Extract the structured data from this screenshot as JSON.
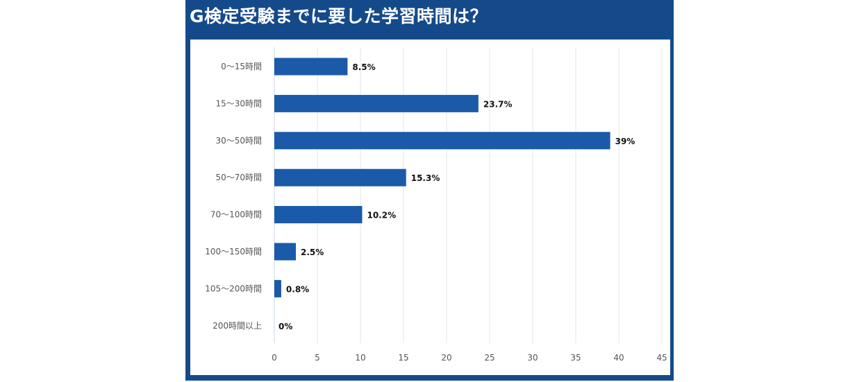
{
  "chart_data": {
    "type": "bar",
    "orientation": "horizontal",
    "title": "G検定受験までに要した学習時間は？",
    "categories": [
      "0〜15時間",
      "15〜30時間",
      "30〜50時間",
      "50〜70時間",
      "70〜100時間",
      "100〜150時間",
      "105〜200時間",
      "200時間以上"
    ],
    "values": [
      8.5,
      23.7,
      39,
      15.3,
      10.2,
      2.5,
      0.8,
      0
    ],
    "data_labels": [
      "8.5%",
      "23.7%",
      "39%",
      "15.3%",
      "10.2%",
      "2.5%",
      "0.8%",
      "0%"
    ],
    "xlim": [
      0,
      45
    ],
    "xticks": [
      0,
      5,
      10,
      15,
      20,
      25,
      30,
      35,
      40,
      45
    ],
    "xlabel": "",
    "ylabel": "",
    "grid": "vertical",
    "colors": {
      "bar": "#1a5aa8",
      "frame": "#154a8a",
      "grid": "#e6e6e6"
    }
  }
}
